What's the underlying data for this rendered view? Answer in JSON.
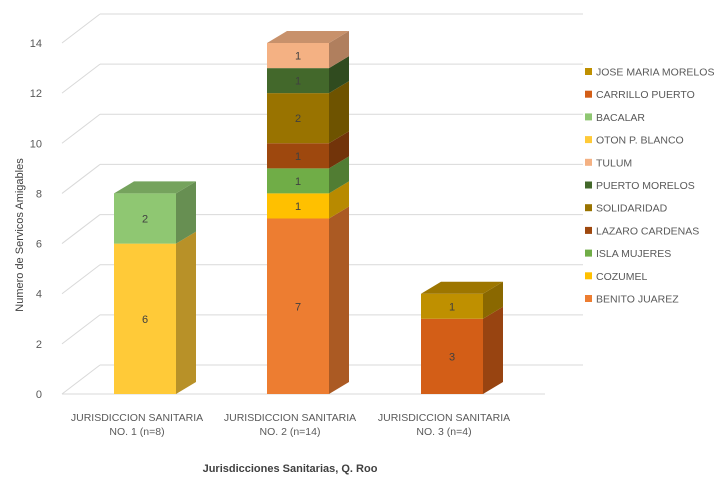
{
  "chart_data": {
    "type": "bar",
    "stacked": true,
    "style": "3d-column",
    "title": "",
    "xlabel": "Jurisdicciones  Sanitarias,  Q. Roo",
    "ylabel": "Numero  de Servicos Amigables",
    "ylim": [
      0,
      14
    ],
    "yticks": [
      "0",
      "2",
      "4",
      "6",
      "8",
      "10",
      "12",
      "14"
    ],
    "grid": true,
    "legend_position": "right",
    "categories": [
      [
        "JURISDICCION SANITARIA",
        "NO. 1 (n=8)"
      ],
      [
        "JURISDICCION SANITARIA",
        "NO. 2 (n=14)"
      ],
      [
        "JURISDICCION SANITARIA",
        "NO. 3 (n=4)"
      ]
    ],
    "series": [
      {
        "name": "BENITO JUAREZ",
        "color": "#ED7D31",
        "values": [
          0,
          7,
          0
        ]
      },
      {
        "name": "COZUMEL",
        "color": "#FFC000",
        "values": [
          0,
          1,
          0
        ]
      },
      {
        "name": "ISLA MUJERES",
        "color": "#70AD47",
        "values": [
          0,
          1,
          0
        ]
      },
      {
        "name": "LAZARO CARDENAS",
        "color": "#9E480E",
        "values": [
          0,
          1,
          0
        ]
      },
      {
        "name": "SOLIDARIDAD",
        "color": "#997300",
        "values": [
          0,
          2,
          0
        ]
      },
      {
        "name": "PUERTO MORELOS",
        "color": "#43682B",
        "values": [
          0,
          1,
          0
        ]
      },
      {
        "name": "TULUM",
        "color": "#F4B183",
        "values": [
          0,
          1,
          0
        ]
      },
      {
        "name": "OTON P. BLANCO",
        "color": "#FFCA38",
        "values": [
          6,
          0,
          0
        ]
      },
      {
        "name": "BACALAR",
        "color": "#8FC772",
        "values": [
          2,
          0,
          0
        ]
      },
      {
        "name": "CARRILLO PUERTO",
        "color": "#D35E17",
        "values": [
          0,
          0,
          3
        ]
      },
      {
        "name": "JOSE MARIA MORELOS",
        "color": "#BF9000",
        "values": [
          0,
          0,
          1
        ]
      }
    ],
    "legend_order": [
      "JOSE MARIA MORELOS",
      "CARRILLO PUERTO",
      "BACALAR",
      "OTON P. BLANCO",
      "TULUM",
      "PUERTO MORELOS",
      "SOLIDARIDAD",
      "LAZARO CARDENAS",
      "ISLA MUJERES",
      "COZUMEL",
      "BENITO JUAREZ"
    ]
  }
}
